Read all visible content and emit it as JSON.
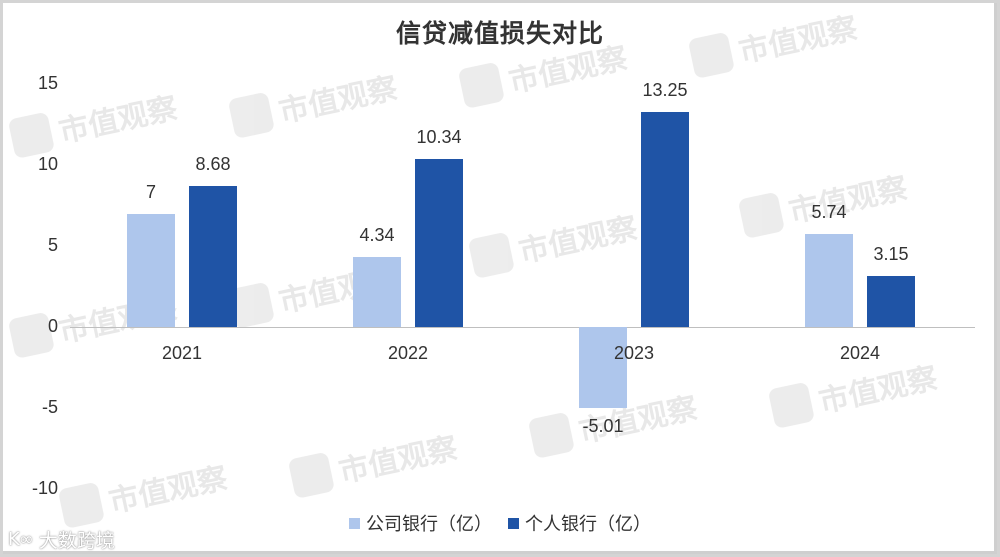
{
  "chart_data": {
    "type": "bar",
    "title": "信贷减值损失对比",
    "categories": [
      "2021",
      "2022",
      "2023",
      "2024"
    ],
    "series": [
      {
        "name": "公司银行（亿）",
        "color": "#aec6ec",
        "values": [
          7,
          4.34,
          -5.01,
          5.74
        ],
        "labels": [
          "7",
          "4.34",
          "-5.01",
          "5.74"
        ]
      },
      {
        "name": "个人银行（亿）",
        "color": "#1f54a6",
        "values": [
          8.68,
          10.34,
          13.25,
          3.15
        ],
        "labels": [
          "8.68",
          "10.34",
          "13.25",
          "3.15"
        ]
      }
    ],
    "xlabel": "",
    "ylabel": "",
    "ylim": [
      -10,
      15
    ],
    "yticks": [
      "15",
      "10",
      "5",
      "0",
      "-5",
      "-10"
    ],
    "grid": false,
    "legend_position": "bottom"
  },
  "watermark": {
    "text": "市值观察"
  },
  "brand": {
    "logo": "K∞",
    "text": "大数跨境"
  }
}
